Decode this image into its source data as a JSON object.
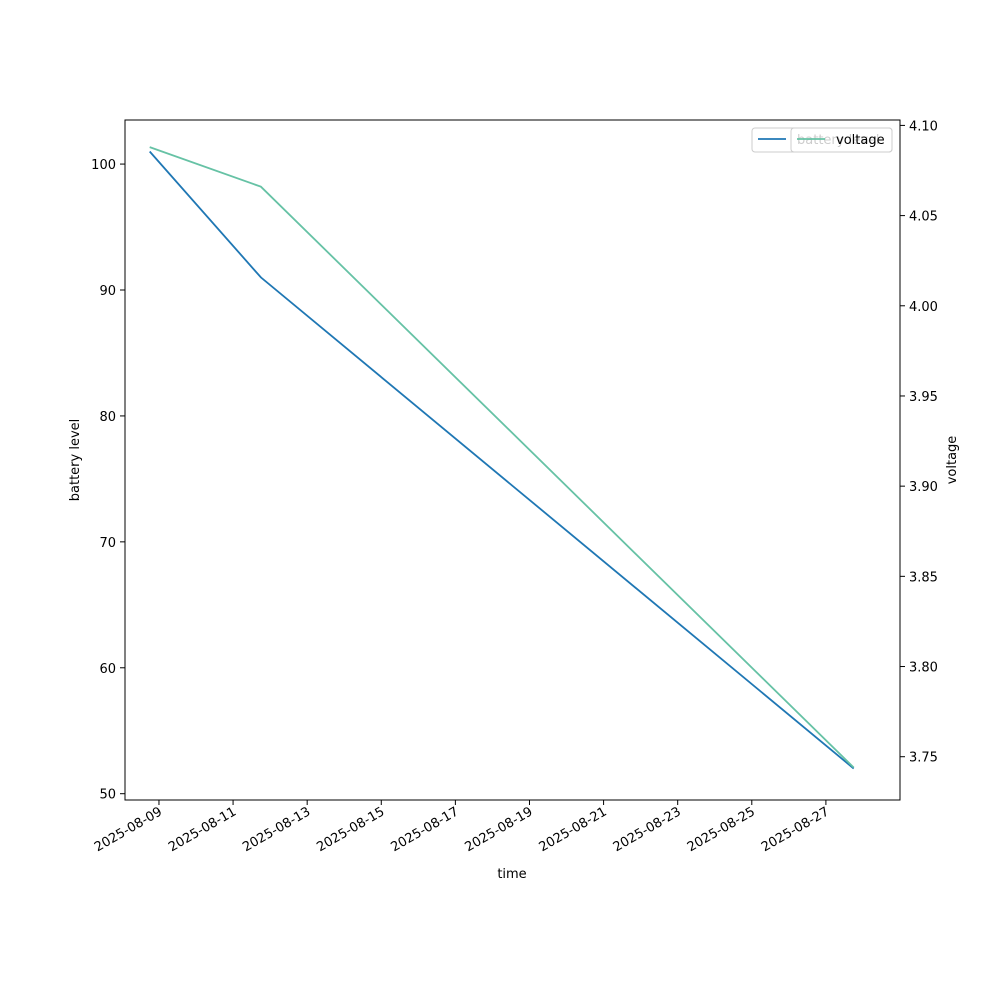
{
  "chart_data": {
    "type": "line",
    "title": "",
    "xlabel": "time",
    "ylabel": "battery level",
    "y2label": "voltage",
    "x_ticks": [
      "2025-08-09",
      "2025-08-11",
      "2025-08-13",
      "2025-08-15",
      "2025-08-17",
      "2025-08-19",
      "2025-08-21",
      "2025-08-23",
      "2025-08-25",
      "2025-08-27"
    ],
    "xlim": [
      "2025-08-08T02:00",
      "2025-08-29T00:00"
    ],
    "ylim": [
      49.5,
      103.5
    ],
    "y_ticks": [
      50,
      60,
      70,
      80,
      90,
      100
    ],
    "y2lim": [
      3.726,
      4.103
    ],
    "y2_ticks": [
      "3.75",
      "3.80",
      "3.85",
      "3.90",
      "3.95",
      "4.00",
      "4.05",
      "4.10"
    ],
    "grid": false,
    "legend_placement": "top-right",
    "series": [
      {
        "name": "battery level",
        "axis": "left",
        "color": "#1f77b4",
        "x": [
          "2025-08-08T18:00",
          "2025-08-11T18:00",
          "2025-08-27T18:00"
        ],
        "values": [
          101,
          91,
          52
        ]
      },
      {
        "name": "voltage",
        "axis": "right",
        "color": "#66c2a5",
        "x": [
          "2025-08-08T18:00",
          "2025-08-11T18:00",
          "2025-08-27T18:00"
        ],
        "values": [
          4.088,
          4.066,
          3.744
        ]
      }
    ]
  }
}
